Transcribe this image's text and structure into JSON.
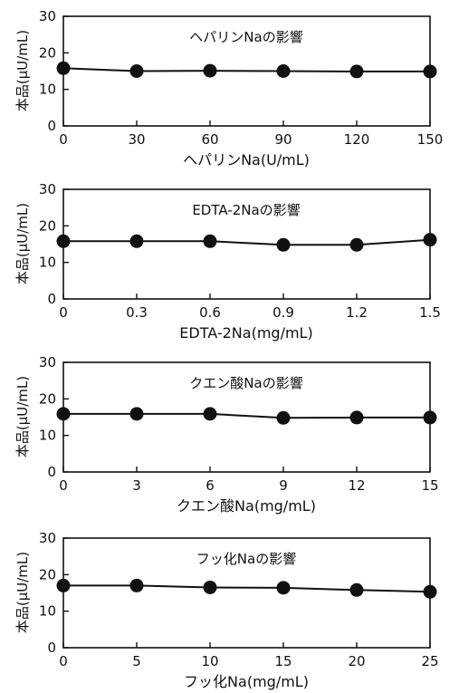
{
  "chart_data": [
    {
      "type": "line",
      "title": "ヘパリンNaの影響",
      "xlabel": "ヘパリンNa(U/mL)",
      "ylabel": "本品(μU/mL)",
      "xlim": [
        0,
        150
      ],
      "ylim": [
        0,
        30
      ],
      "xticks": [
        "0",
        "30",
        "60",
        "90",
        "120",
        "150"
      ],
      "yticks": [
        "0",
        "10",
        "20",
        "30"
      ],
      "x": [
        0,
        30,
        60,
        90,
        120,
        150
      ],
      "values": [
        15.8,
        15.0,
        15.1,
        15.0,
        14.9,
        14.9
      ],
      "grid": false
    },
    {
      "type": "line",
      "title": "EDTA-2Naの影響",
      "xlabel": "EDTA-2Na(mg/mL)",
      "ylabel": "本品(μU/mL)",
      "xlim": [
        0,
        1.5
      ],
      "ylim": [
        0,
        30
      ],
      "xticks": [
        "0",
        "0.3",
        "0.6",
        "0.9",
        "1.2",
        "1.5"
      ],
      "yticks": [
        "0",
        "10",
        "20",
        "30"
      ],
      "x": [
        0,
        0.3,
        0.6,
        0.9,
        1.2,
        1.5
      ],
      "values": [
        15.8,
        15.8,
        15.8,
        14.8,
        14.8,
        16.2
      ],
      "grid": false
    },
    {
      "type": "line",
      "title": "クエン酸Naの影響",
      "xlabel": "クエン酸Na(mg/mL)",
      "ylabel": "本品(μU/mL)",
      "xlim": [
        0,
        15
      ],
      "ylim": [
        0,
        30
      ],
      "xticks": [
        "0",
        "3",
        "6",
        "9",
        "12",
        "15"
      ],
      "yticks": [
        "0",
        "10",
        "20",
        "30"
      ],
      "x": [
        0,
        3,
        6,
        9,
        12,
        15
      ],
      "values": [
        15.9,
        15.9,
        15.9,
        14.8,
        14.9,
        14.9
      ],
      "grid": false
    },
    {
      "type": "line",
      "title": "フッ化Naの影響",
      "xlabel": "フッ化Na(mg/mL)",
      "ylabel": "本品(μU/mL)",
      "xlim": [
        0,
        25
      ],
      "ylim": [
        0,
        30
      ],
      "xticks": [
        "0",
        "5",
        "10",
        "15",
        "20",
        "25"
      ],
      "yticks": [
        "0",
        "10",
        "20",
        "30"
      ],
      "x": [
        0,
        5,
        10,
        15,
        20,
        25
      ],
      "values": [
        17.0,
        17.0,
        16.5,
        16.4,
        15.8,
        15.3
      ],
      "grid": false
    }
  ]
}
